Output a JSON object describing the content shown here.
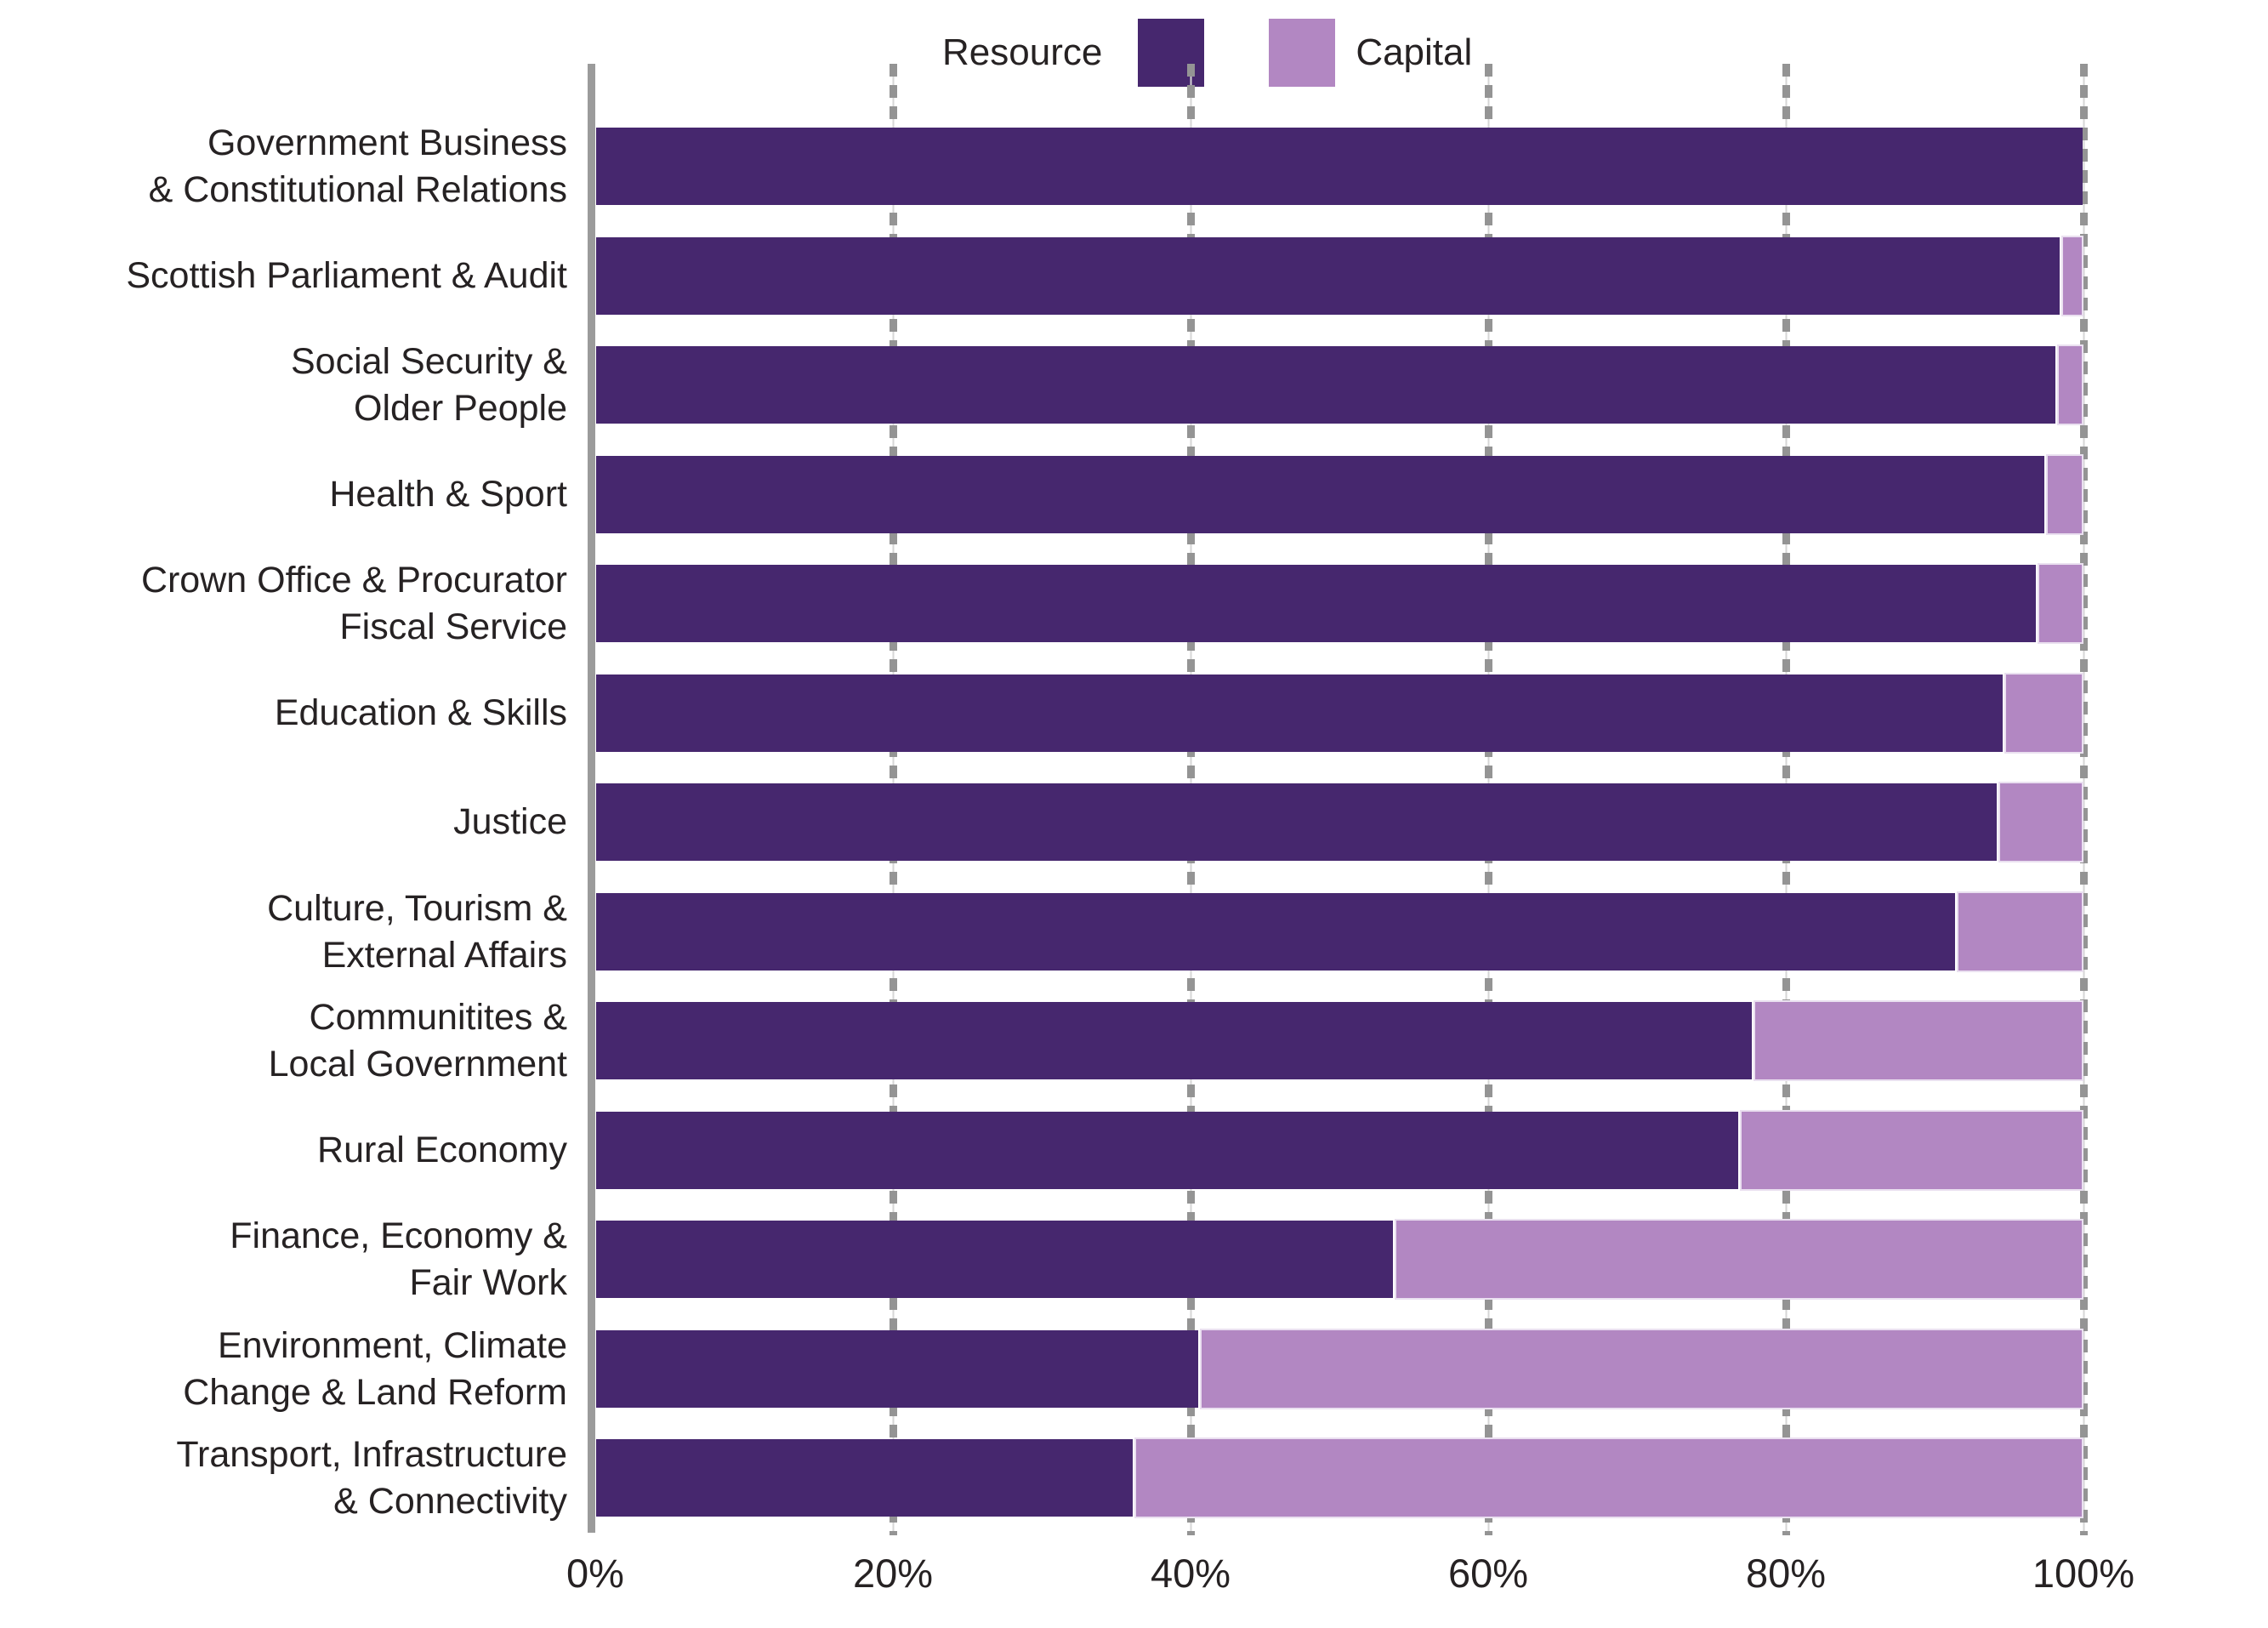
{
  "chart_data": {
    "type": "bar",
    "orientation": "horizontal-stacked",
    "title": "",
    "units": "percent",
    "xlim": [
      0,
      100
    ],
    "x_ticks": [
      "0%",
      "20%",
      "40%",
      "60%",
      "80%",
      "100%"
    ],
    "x_tick_values": [
      0,
      20,
      40,
      60,
      80,
      100
    ],
    "grid": "dashed-vertical",
    "legend_position": "top-center",
    "axis_color": "#9b9b9b",
    "grid_color": "#949494",
    "text_color": "#262223",
    "categories": [
      "Government Business & Constitutional Relations",
      "Scottish Parliament & Audit",
      "Social Security & Older People",
      "Health & Sport",
      "Crown Office & Procurator Fiscal Service",
      "Education & Skills",
      "Justice",
      "Culture, Tourism & External Affairs",
      "Communitites & Local Government",
      "Rural Economy",
      "Finance, Economy & Fair Work",
      "Environment, Climate Change & Land Reform",
      "Transport, Infrastructure & Connectivity"
    ],
    "category_lines": [
      [
        "Government Business",
        "& Constitutional Relations"
      ],
      [
        "Scottish Parliament & Audit"
      ],
      [
        "Social Security &",
        "Older People"
      ],
      [
        "Health & Sport"
      ],
      [
        "Crown Office & Procurator",
        "Fiscal Service"
      ],
      [
        "Education & Skills"
      ],
      [
        "Justice"
      ],
      [
        "Culture, Tourism &",
        "External Affairs"
      ],
      [
        "Communitites &",
        "Local Government"
      ],
      [
        "Rural Economy"
      ],
      [
        "Finance, Economy &",
        "Fair Work"
      ],
      [
        "Environment, Climate",
        "Change & Land Reform"
      ],
      [
        "Transport, Infrastructure",
        "& Connectivity"
      ]
    ],
    "series": [
      {
        "name": "Resource",
        "color": "#46276e",
        "values": [
          100,
          98.5,
          98.2,
          97.5,
          96.9,
          94.7,
          94.3,
          91.5,
          77.8,
          76.9,
          53.7,
          40.6,
          36.2
        ]
      },
      {
        "name": "Capital",
        "color": "#b287c2",
        "values": [
          0,
          1.5,
          1.8,
          2.5,
          3.1,
          5.3,
          5.7,
          8.5,
          22.2,
          23.1,
          46.3,
          59.4,
          63.8
        ]
      }
    ]
  }
}
